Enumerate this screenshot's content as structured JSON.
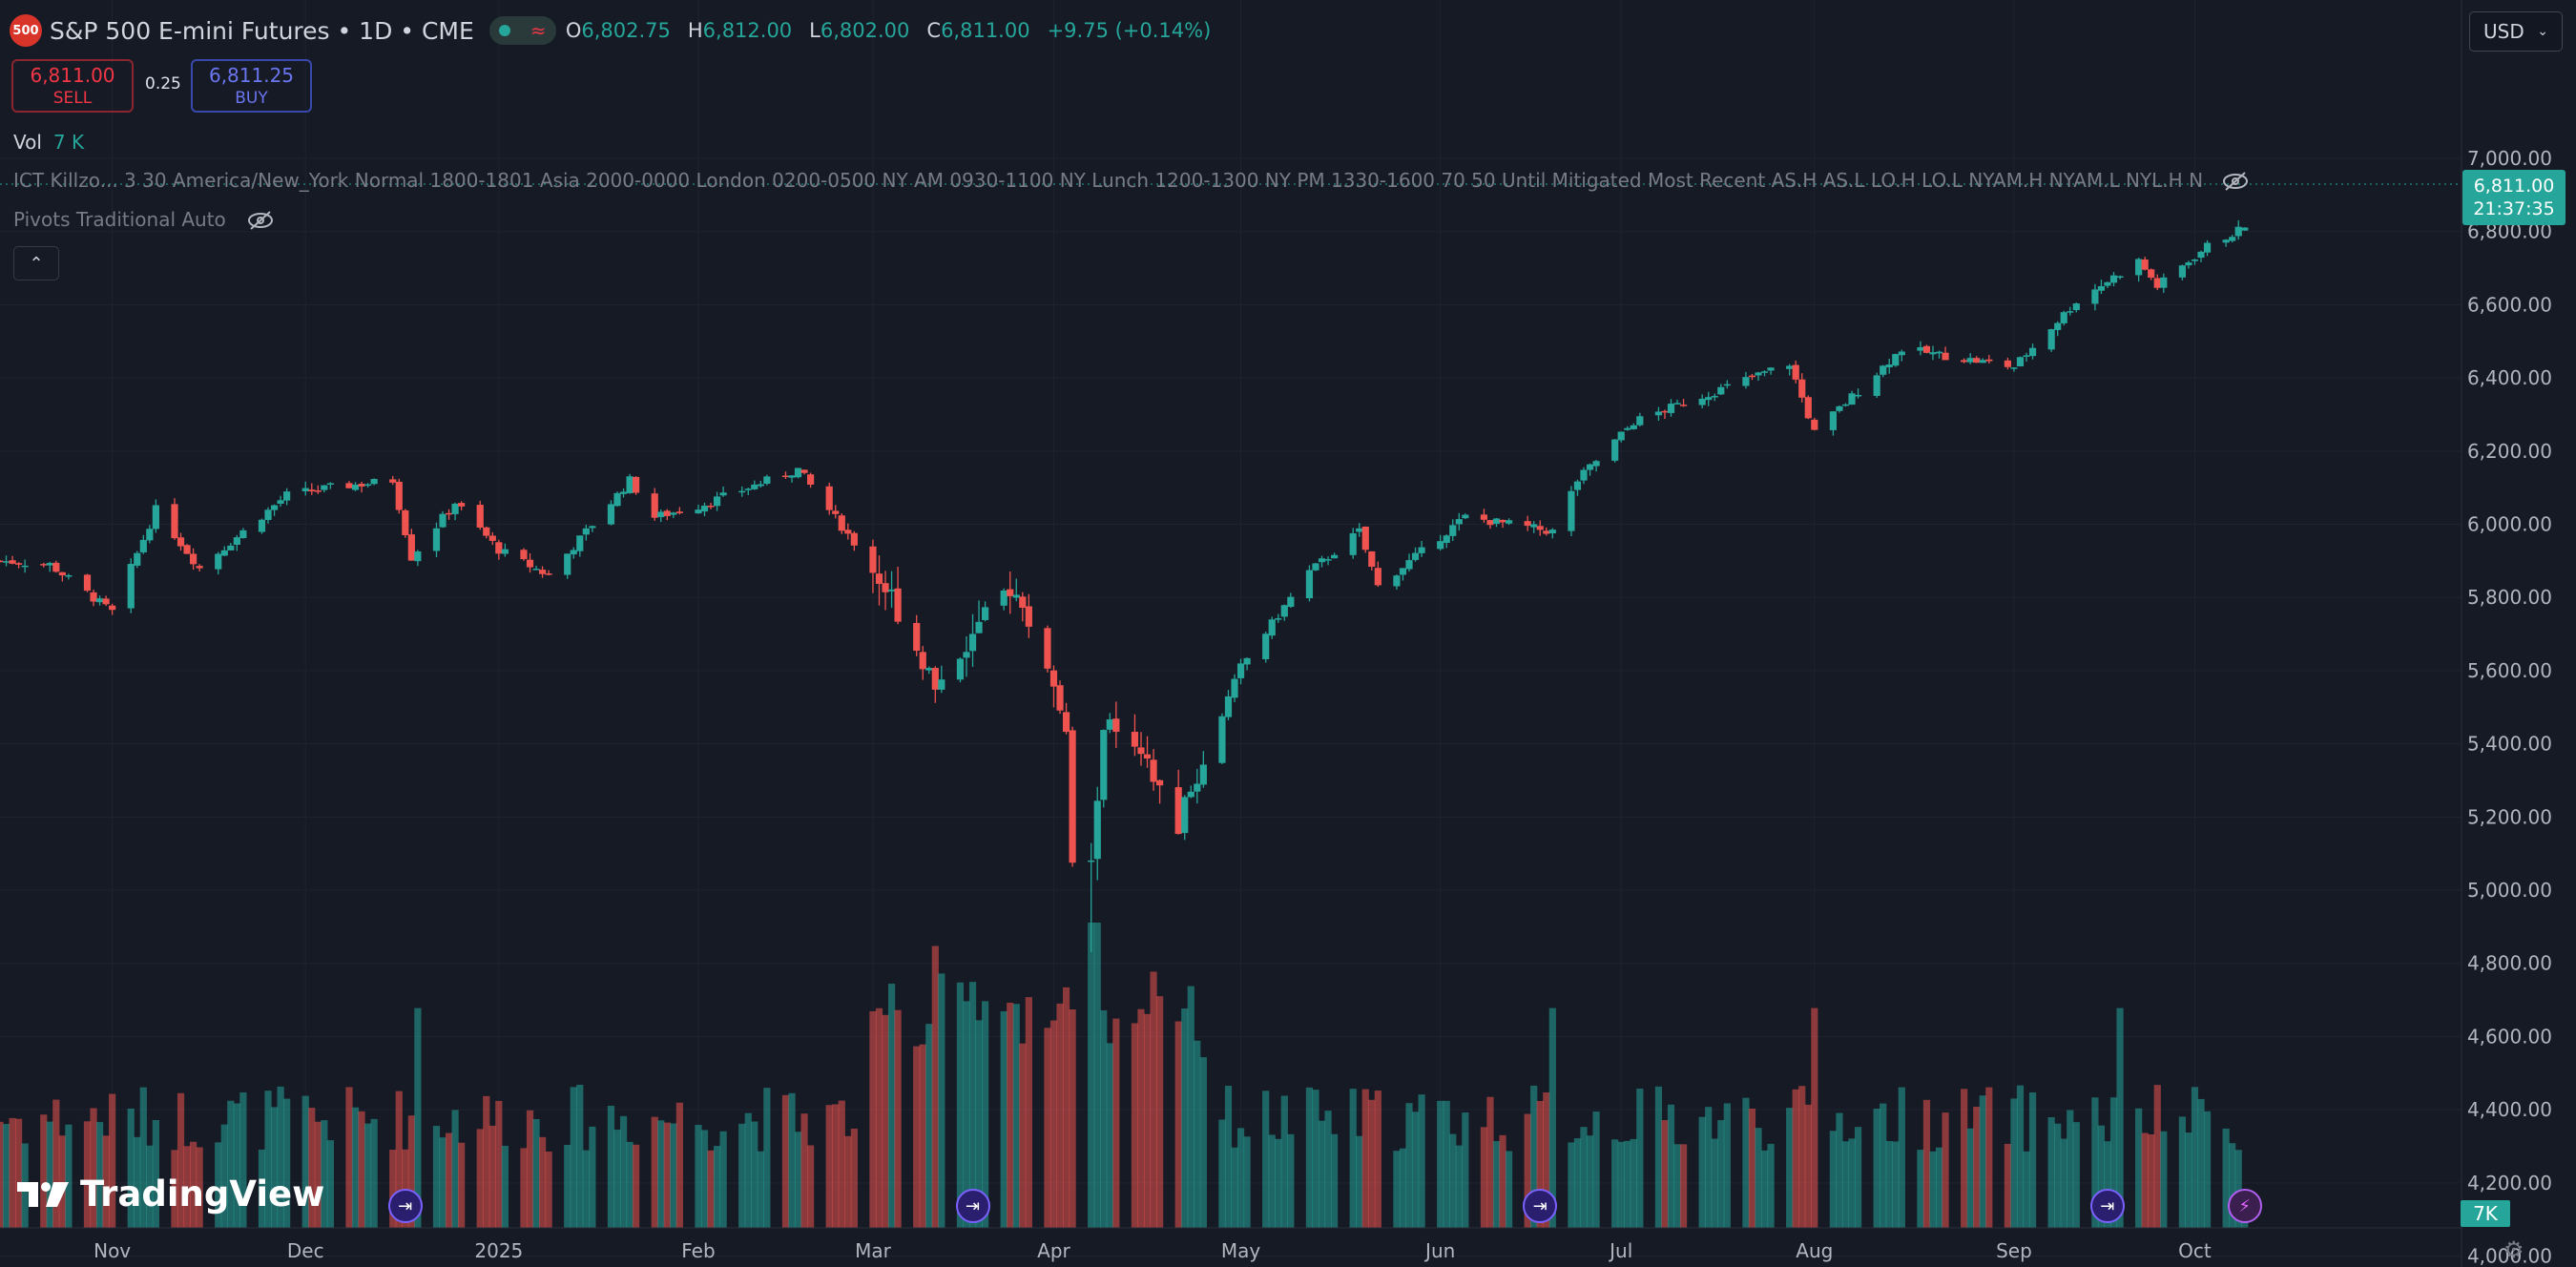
{
  "header": {
    "symbol_icon": "500",
    "title": "S&P 500 E-mini Futures • 1D • CME",
    "open_key": "O",
    "open": "6,802.75",
    "high_key": "H",
    "high": "6,812.00",
    "low_key": "L",
    "low": "6,802.00",
    "close_key": "C",
    "close": "6,811.00",
    "change": "+9.75 (+0.14%)"
  },
  "trade": {
    "sell_price": "6,811.00",
    "sell_label": "SELL",
    "spread": "0.25",
    "buy_price": "6,811.25",
    "buy_label": "BUY"
  },
  "indicators": {
    "vol_name": "Vol",
    "vol_value": "7 K",
    "ict": "ICT Killzo...  3 30 America/New_York Normal 1800-1801 Asia 2000-0000 London 0200-0500 NY AM 0930-1100 NY Lunch 1200-1300 NY PM 1330-1600 70 50 Until Mitigated Most Recent AS.H AS.L LO.H LO.L NYAM.H NYAM.L NYL.H N",
    "pivots": "Pivots Traditional Auto"
  },
  "currency": "USD",
  "last_price": {
    "price": "6,811.00",
    "countdown": "21:37:35"
  },
  "volume_label": "7K",
  "logo_text": "TradingView",
  "icons": [
    "eye-off-icon",
    "chevron-up-icon",
    "chevron-down-icon",
    "event-icon",
    "flash-icon",
    "settings-icon"
  ],
  "colors": {
    "up": "#26a69a",
    "down": "#ef5350",
    "background": "#161a25"
  },
  "chart_data": {
    "type": "candlestick",
    "interval": "1D",
    "y_ticks": [
      7000,
      6800,
      6600,
      6400,
      6200,
      6000,
      5800,
      5600,
      5400,
      5200,
      5000,
      4800,
      4600,
      4400,
      4200,
      4000
    ],
    "y_tick_labels": [
      "7,000.00",
      "6,800.00",
      "6,600.00",
      "6,400.00",
      "6,200.00",
      "6,000.00",
      "5,800.00",
      "5,600.00",
      "5,400.00",
      "5,200.00",
      "5,000.00",
      "4,800.00",
      "4,600.00",
      "4,400.00",
      "4,200.00",
      "4,000.00"
    ],
    "ylim": [
      3940,
      7120
    ],
    "x_labels": [
      {
        "label": "Nov",
        "date": "2024-11-01"
      },
      {
        "label": "Dec",
        "date": "2024-12-02"
      },
      {
        "label": "2025",
        "date": "2025-01-02"
      },
      {
        "label": "Feb",
        "date": "2025-02-03"
      },
      {
        "label": "Mar",
        "date": "2025-03-03"
      },
      {
        "label": "Apr",
        "date": "2025-04-01"
      },
      {
        "label": "May",
        "date": "2025-05-01"
      },
      {
        "label": "Jun",
        "date": "2025-06-02"
      },
      {
        "label": "Jul",
        "date": "2025-07-01"
      },
      {
        "label": "Aug",
        "date": "2025-08-01"
      },
      {
        "label": "Sep",
        "date": "2025-09-02"
      },
      {
        "label": "Oct",
        "date": "2025-10-01"
      }
    ],
    "x_range": [
      "2024-10-14",
      "2025-10-30"
    ],
    "close_path": [
      {
        "date": "2024-10-14",
        "close": 5900
      },
      {
        "date": "2024-10-22",
        "close": 5890
      },
      {
        "date": "2024-11-01",
        "close": 5760
      },
      {
        "date": "2024-11-08",
        "close": 6040
      },
      {
        "date": "2024-11-15",
        "close": 5880
      },
      {
        "date": "2024-11-29",
        "close": 6080
      },
      {
        "date": "2024-12-06",
        "close": 6100
      },
      {
        "date": "2024-12-16",
        "close": 6120
      },
      {
        "date": "2024-12-19",
        "close": 5910
      },
      {
        "date": "2024-12-26",
        "close": 6060
      },
      {
        "date": "2025-01-02",
        "close": 5930
      },
      {
        "date": "2025-01-10",
        "close": 5860
      },
      {
        "date": "2025-01-23",
        "close": 6120
      },
      {
        "date": "2025-01-27",
        "close": 6020
      },
      {
        "date": "2025-02-03",
        "close": 6050
      },
      {
        "date": "2025-02-19",
        "close": 6150
      },
      {
        "date": "2025-02-28",
        "close": 5950
      },
      {
        "date": "2025-03-06",
        "close": 5800
      },
      {
        "date": "2025-03-13",
        "close": 5560
      },
      {
        "date": "2025-03-25",
        "close": 5830
      },
      {
        "date": "2025-03-31",
        "close": 5620
      },
      {
        "date": "2025-04-03",
        "close": 5410
      },
      {
        "date": "2025-04-04",
        "close": 5080
      },
      {
        "date": "2025-04-07",
        "close": 5060
      },
      {
        "date": "2025-04-09",
        "close": 5460
      },
      {
        "date": "2025-04-16",
        "close": 5330
      },
      {
        "date": "2025-04-21",
        "close": 5180
      },
      {
        "date": "2025-05-01",
        "close": 5610
      },
      {
        "date": "2025-05-12",
        "close": 5870
      },
      {
        "date": "2025-05-20",
        "close": 5980
      },
      {
        "date": "2025-05-23",
        "close": 5830
      },
      {
        "date": "2025-06-06",
        "close": 6020
      },
      {
        "date": "2025-06-20",
        "close": 5980
      },
      {
        "date": "2025-06-24",
        "close": 6120
      },
      {
        "date": "2025-07-03",
        "close": 6280
      },
      {
        "date": "2025-07-28",
        "close": 6440
      },
      {
        "date": "2025-08-01",
        "close": 6250
      },
      {
        "date": "2025-08-15",
        "close": 6480
      },
      {
        "date": "2025-09-02",
        "close": 6430
      },
      {
        "date": "2025-09-12",
        "close": 6610
      },
      {
        "date": "2025-09-22",
        "close": 6720
      },
      {
        "date": "2025-09-25",
        "close": 6650
      },
      {
        "date": "2025-10-03",
        "close": 6760
      },
      {
        "date": "2025-10-09",
        "close": 6811
      }
    ],
    "volume_scale_ticks": [],
    "event_dates": [
      "2024-12-18",
      "2025-03-19",
      "2025-06-18",
      "2025-09-17",
      "2025-10-09"
    ]
  }
}
